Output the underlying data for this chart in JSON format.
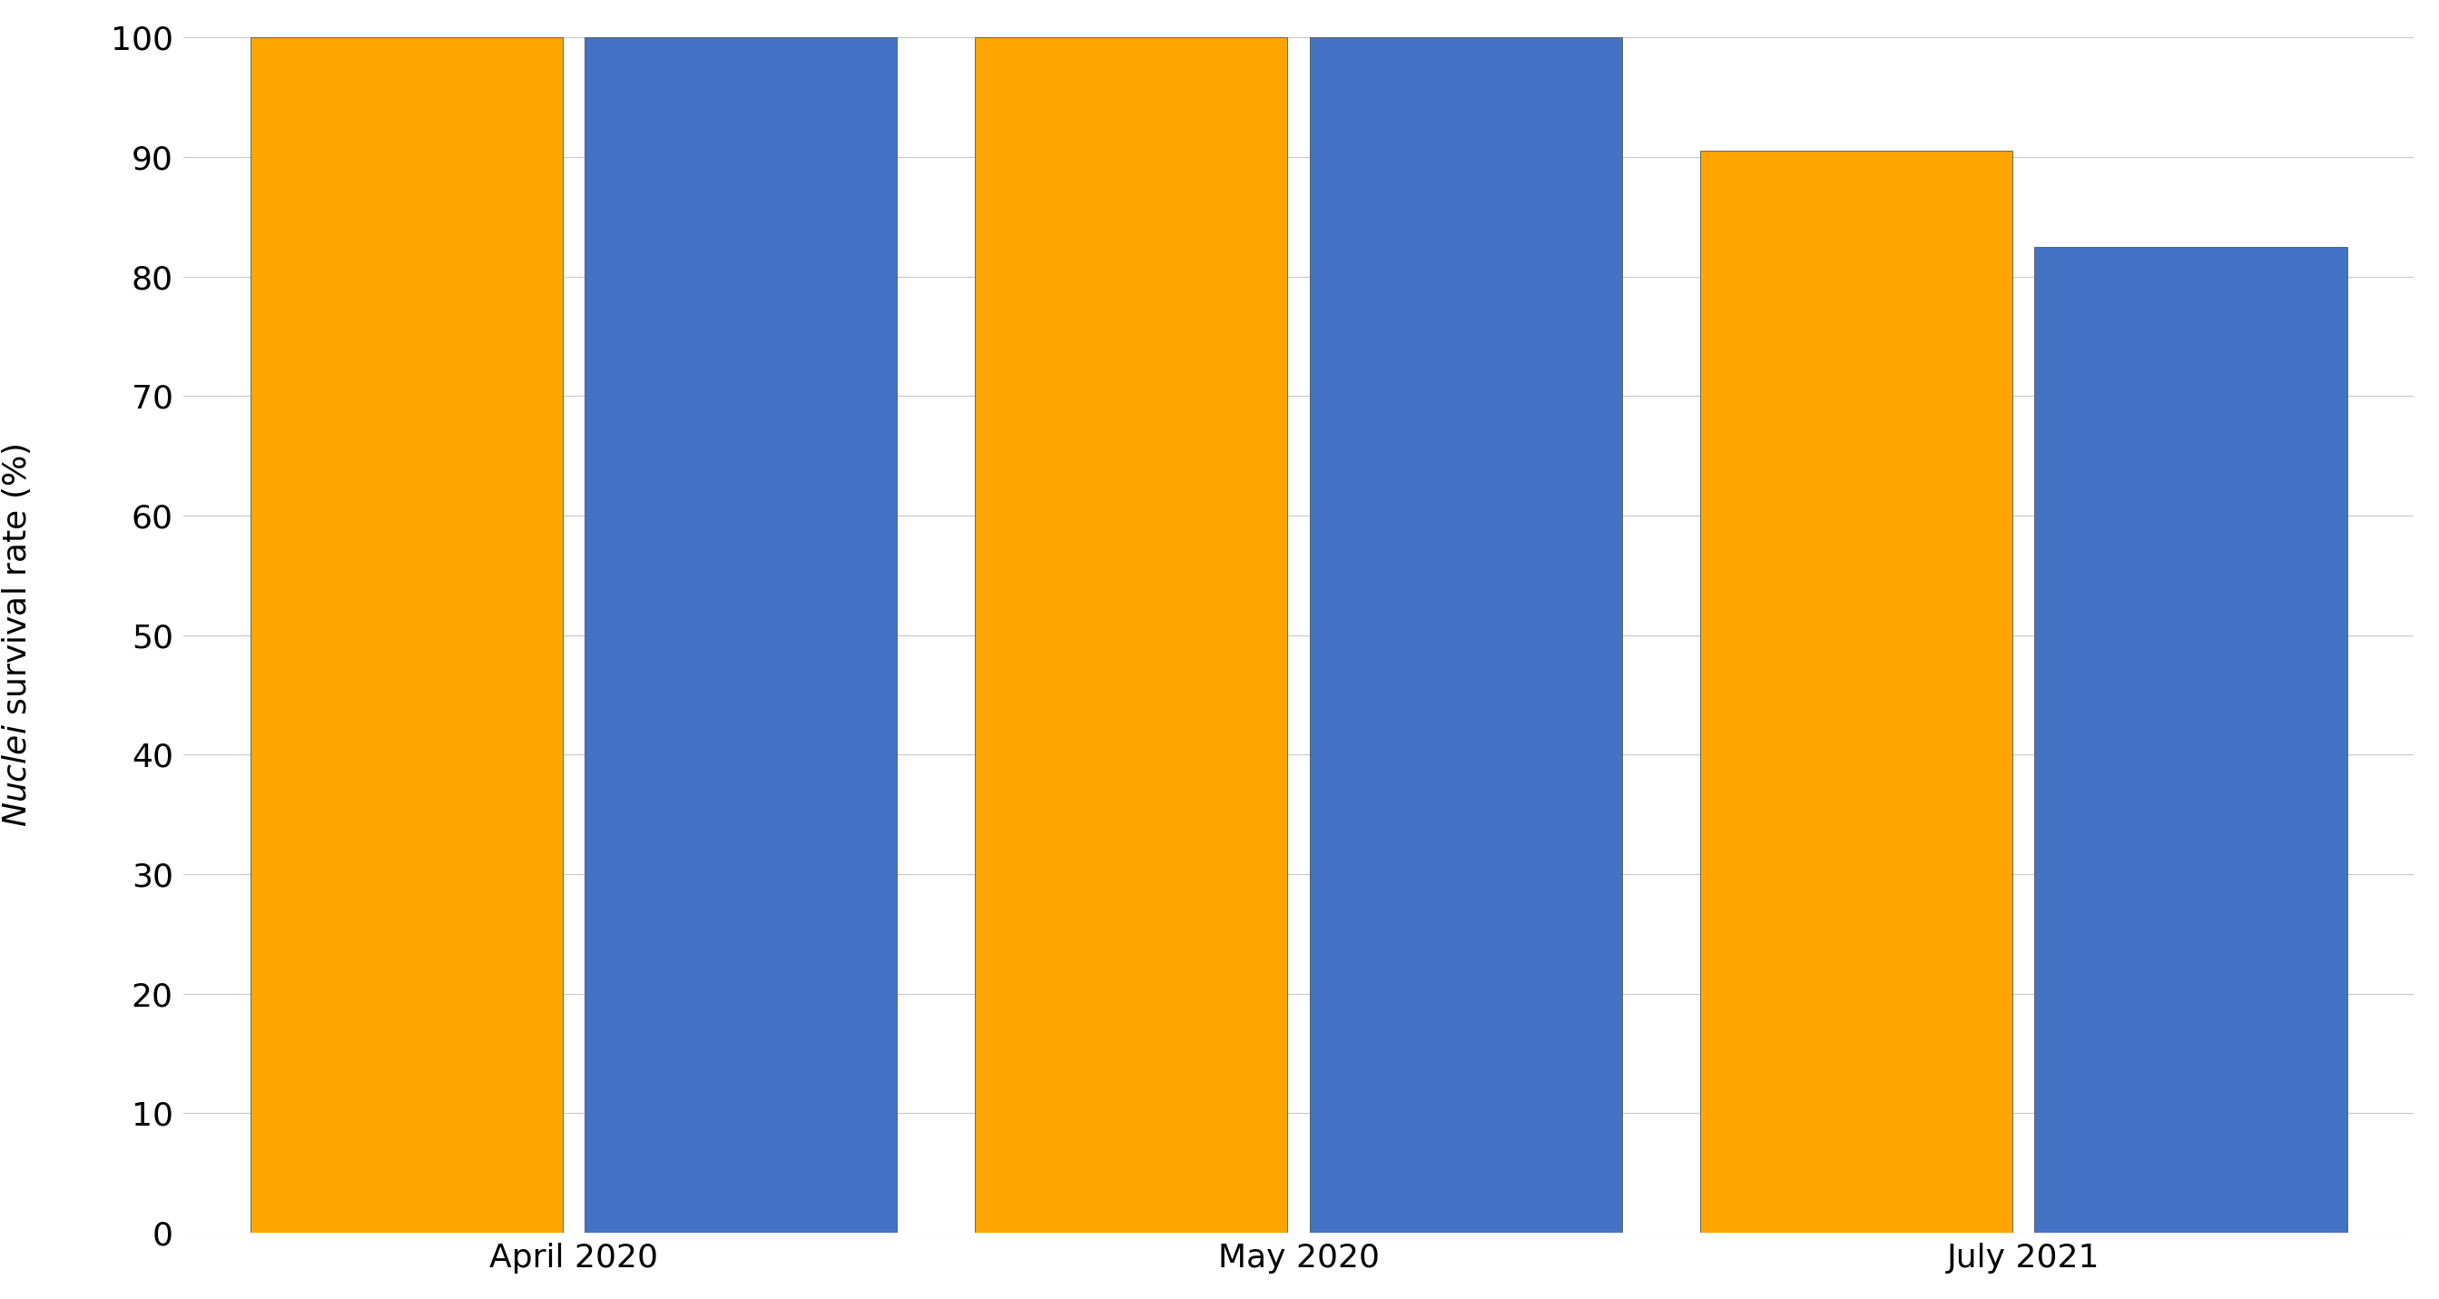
{
  "groups": [
    "April 2020",
    "May 2020",
    "July 2021"
  ],
  "series1_values": [
    100,
    100,
    90.5
  ],
  "series2_values": [
    100,
    100,
    82.5
  ],
  "series1_color": "#FFA500",
  "series2_color": "#4472C4",
  "ylim": [
    0,
    100
  ],
  "yticks": [
    0,
    10,
    20,
    30,
    40,
    50,
    60,
    70,
    80,
    90,
    100
  ],
  "bar_width": 0.28,
  "group_positions": [
    0.35,
    1.0,
    1.65
  ],
  "background_color": "#ffffff",
  "grid_color": "#c8c8c8",
  "tick_fontsize": 26,
  "label_fontsize": 26
}
